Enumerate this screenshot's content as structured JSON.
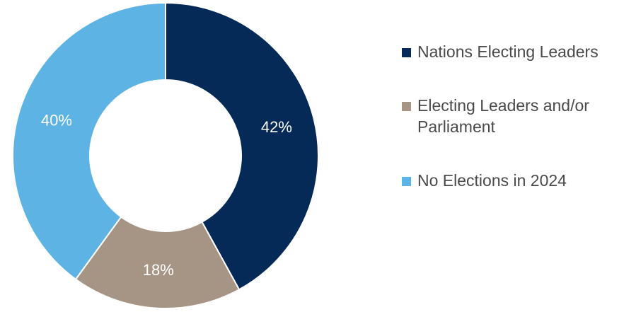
{
  "chart_data": {
    "type": "pie",
    "donut": true,
    "title": "",
    "legend_position": "right",
    "slices": [
      {
        "name": "Nations Electing Leaders",
        "value": 42,
        "label": "42%",
        "color": "#052a57"
      },
      {
        "name": "Electing Leaders and/or Parliament",
        "value": 18,
        "label": "18%",
        "color": "#a69584"
      },
      {
        "name": "No Elections in 2024",
        "value": 40,
        "label": "40%",
        "color": "#5db3e4"
      }
    ]
  }
}
